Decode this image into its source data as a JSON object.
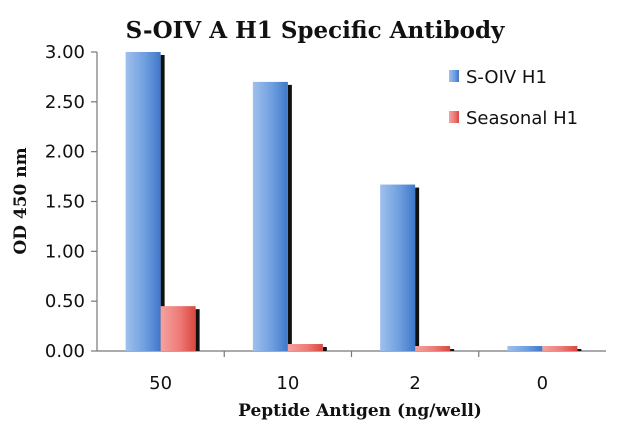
{
  "chart_data": {
    "type": "bar",
    "title": "S-OIV A H1 Specific Antibody",
    "xlabel": "Peptide Antigen (ng/well)",
    "ylabel": "OD 450 nm",
    "categories": [
      "50",
      "10",
      "2",
      "0"
    ],
    "series": [
      {
        "name": "S-OIV H1",
        "values": [
          3.0,
          2.7,
          1.67,
          0.05
        ],
        "color": "#5b8fd6"
      },
      {
        "name": "Seasonal H1",
        "values": [
          0.45,
          0.07,
          0.05,
          0.05
        ],
        "color": "#e8645e"
      }
    ],
    "ylim": [
      0,
      3.0
    ],
    "yticks": [
      "0.00",
      "0.50",
      "1.00",
      "1.50",
      "2.00",
      "2.50",
      "3.00"
    ],
    "grid": false,
    "legend": "top-right"
  }
}
